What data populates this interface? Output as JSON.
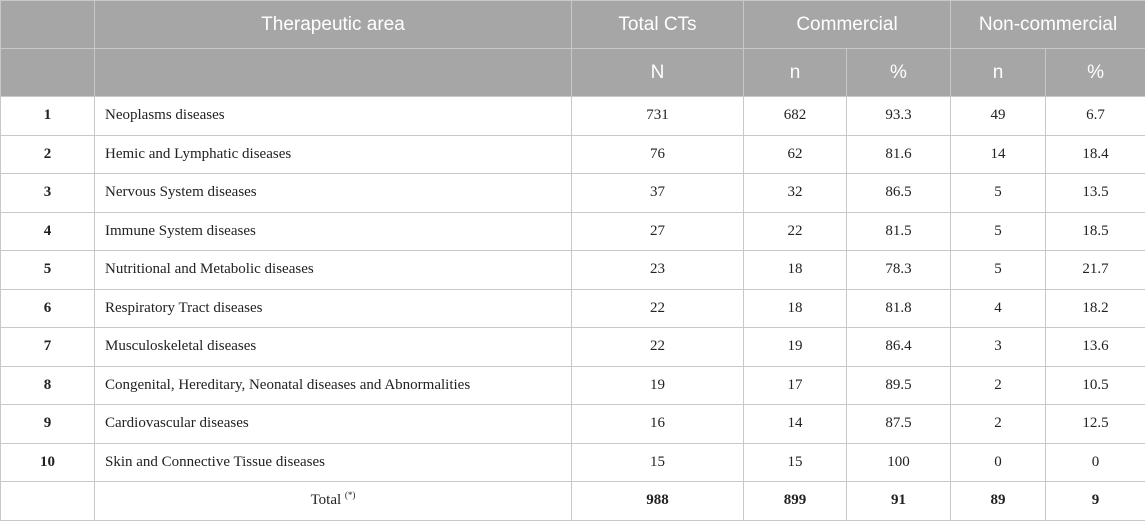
{
  "header": {
    "therapeutic_area": "Therapeutic area",
    "total_cts": "Total CTs",
    "commercial": "Commercial",
    "non_commercial": "Non-commercial",
    "N": "N",
    "n": "n",
    "pct": "%"
  },
  "rows": [
    {
      "rank": "1",
      "area": "Neoplasms diseases",
      "total": "731",
      "com_n": "682",
      "com_pct": "93.3",
      "non_n": "49",
      "non_pct": "6.7"
    },
    {
      "rank": "2",
      "area": "Hemic and Lymphatic diseases",
      "total": "76",
      "com_n": "62",
      "com_pct": "81.6",
      "non_n": "14",
      "non_pct": "18.4"
    },
    {
      "rank": "3",
      "area": "Nervous System diseases",
      "total": "37",
      "com_n": "32",
      "com_pct": "86.5",
      "non_n": "5",
      "non_pct": "13.5"
    },
    {
      "rank": "4",
      "area": "Immune System diseases",
      "total": "27",
      "com_n": "22",
      "com_pct": "81.5",
      "non_n": "5",
      "non_pct": "18.5"
    },
    {
      "rank": "5",
      "area": "Nutritional and Metabolic diseases",
      "total": "23",
      "com_n": "18",
      "com_pct": "78.3",
      "non_n": "5",
      "non_pct": "21.7"
    },
    {
      "rank": "6",
      "area": "Respiratory Tract diseases",
      "total": "22",
      "com_n": "18",
      "com_pct": "81.8",
      "non_n": "4",
      "non_pct": "18.2"
    },
    {
      "rank": "7",
      "area": "Musculoskeletal diseases",
      "total": "22",
      "com_n": "19",
      "com_pct": "86.4",
      "non_n": "3",
      "non_pct": "13.6"
    },
    {
      "rank": "8",
      "area": "Congenital, Hereditary, Neonatal diseases and Abnormalities",
      "total": "19",
      "com_n": "17",
      "com_pct": "89.5",
      "non_n": "2",
      "non_pct": "10.5"
    },
    {
      "rank": "9",
      "area": "Cardiovascular diseases",
      "total": "16",
      "com_n": "14",
      "com_pct": "87.5",
      "non_n": "2",
      "non_pct": "12.5"
    },
    {
      "rank": "10",
      "area": "Skin and Connective Tissue diseases",
      "total": "15",
      "com_n": "15",
      "com_pct": "100",
      "non_n": "0",
      "non_pct": "0"
    }
  ],
  "total_row": {
    "label": "Total",
    "note": "(*)",
    "total": "988",
    "com_n": "899",
    "com_pct": "91",
    "non_n": "89",
    "non_pct": "9"
  }
}
